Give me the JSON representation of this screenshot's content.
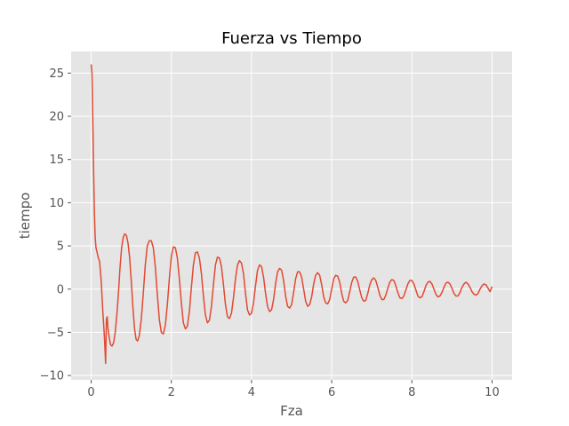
{
  "chart_data": {
    "type": "line",
    "title": "Fuerza vs Tiempo",
    "xlabel": "Fza",
    "ylabel": "tiempo",
    "xlim": [
      -0.5,
      10.5
    ],
    "ylim": [
      -10.5,
      27.5
    ],
    "xticks": [
      0,
      2,
      4,
      6,
      8,
      10
    ],
    "yticks": [
      -10,
      -5,
      0,
      5,
      10,
      15,
      20,
      25
    ],
    "grid": true,
    "style": "ggplot",
    "line_color": "#E24A33",
    "background_color": "#E5E5E5",
    "series": [
      {
        "points": [
          [
            0.0,
            26.0
          ],
          [
            0.02,
            25.0
          ],
          [
            0.04,
            20.0
          ],
          [
            0.06,
            14.0
          ],
          [
            0.08,
            9.0
          ],
          [
            0.1,
            6.0
          ],
          [
            0.12,
            4.8
          ],
          [
            0.15,
            4.2
          ],
          [
            0.18,
            3.6
          ],
          [
            0.21,
            3.2
          ],
          [
            0.25,
            1.0
          ],
          [
            0.29,
            -2.5
          ],
          [
            0.33,
            -5.5
          ],
          [
            0.36,
            -8.6
          ],
          [
            0.38,
            -3.5
          ],
          [
            0.4,
            -3.2
          ],
          [
            0.42,
            -4.6
          ],
          [
            0.45,
            -5.6
          ],
          [
            0.48,
            -6.4
          ],
          [
            0.52,
            -6.6
          ],
          [
            0.56,
            -6.2
          ],
          [
            0.6,
            -5.0
          ],
          [
            0.64,
            -3.0
          ],
          [
            0.68,
            -0.5
          ],
          [
            0.72,
            2.5
          ],
          [
            0.76,
            4.8
          ],
          [
            0.8,
            6.0
          ],
          [
            0.84,
            6.4
          ],
          [
            0.88,
            6.2
          ],
          [
            0.92,
            5.3
          ],
          [
            0.96,
            3.6
          ],
          [
            1.0,
            1.0
          ],
          [
            1.04,
            -2.0
          ],
          [
            1.08,
            -4.5
          ],
          [
            1.12,
            -5.8
          ],
          [
            1.16,
            -6.0
          ],
          [
            1.2,
            -5.4
          ],
          [
            1.25,
            -3.5
          ],
          [
            1.3,
            -0.5
          ],
          [
            1.35,
            2.8
          ],
          [
            1.4,
            5.0
          ],
          [
            1.45,
            5.6
          ],
          [
            1.5,
            5.6
          ],
          [
            1.55,
            4.8
          ],
          [
            1.6,
            2.6
          ],
          [
            1.65,
            -0.6
          ],
          [
            1.7,
            -3.5
          ],
          [
            1.75,
            -5.0
          ],
          [
            1.8,
            -5.2
          ],
          [
            1.85,
            -4.2
          ],
          [
            1.9,
            -1.8
          ],
          [
            1.95,
            1.2
          ],
          [
            2.0,
            3.8
          ],
          [
            2.05,
            4.9
          ],
          [
            2.1,
            4.8
          ],
          [
            2.15,
            3.6
          ],
          [
            2.2,
            1.2
          ],
          [
            2.25,
            -1.6
          ],
          [
            2.3,
            -3.9
          ],
          [
            2.35,
            -4.6
          ],
          [
            2.4,
            -4.3
          ],
          [
            2.45,
            -2.6
          ],
          [
            2.5,
            0.2
          ],
          [
            2.55,
            2.8
          ],
          [
            2.6,
            4.2
          ],
          [
            2.65,
            4.3
          ],
          [
            2.7,
            3.6
          ],
          [
            2.75,
            1.8
          ],
          [
            2.8,
            -0.8
          ],
          [
            2.85,
            -3.0
          ],
          [
            2.9,
            -3.9
          ],
          [
            2.95,
            -3.6
          ],
          [
            3.0,
            -2.0
          ],
          [
            3.05,
            0.5
          ],
          [
            3.1,
            2.8
          ],
          [
            3.15,
            3.7
          ],
          [
            3.2,
            3.6
          ],
          [
            3.25,
            2.6
          ],
          [
            3.3,
            0.5
          ],
          [
            3.35,
            -1.8
          ],
          [
            3.4,
            -3.2
          ],
          [
            3.45,
            -3.4
          ],
          [
            3.5,
            -2.8
          ],
          [
            3.55,
            -1.0
          ],
          [
            3.6,
            1.2
          ],
          [
            3.65,
            2.8
          ],
          [
            3.7,
            3.3
          ],
          [
            3.75,
            3.0
          ],
          [
            3.8,
            1.8
          ],
          [
            3.85,
            -0.5
          ],
          [
            3.9,
            -2.4
          ],
          [
            3.95,
            -3.0
          ],
          [
            4.0,
            -2.8
          ],
          [
            4.05,
            -1.6
          ],
          [
            4.1,
            0.4
          ],
          [
            4.15,
            2.2
          ],
          [
            4.2,
            2.8
          ],
          [
            4.25,
            2.6
          ],
          [
            4.3,
            1.4
          ],
          [
            4.35,
            -0.5
          ],
          [
            4.4,
            -2.0
          ],
          [
            4.45,
            -2.6
          ],
          [
            4.5,
            -2.4
          ],
          [
            4.55,
            -1.2
          ],
          [
            4.6,
            0.6
          ],
          [
            4.65,
            2.0
          ],
          [
            4.7,
            2.4
          ],
          [
            4.75,
            2.2
          ],
          [
            4.8,
            1.0
          ],
          [
            4.85,
            -0.8
          ],
          [
            4.9,
            -2.0
          ],
          [
            4.95,
            -2.2
          ],
          [
            5.0,
            -1.8
          ],
          [
            5.05,
            -0.4
          ],
          [
            5.1,
            1.2
          ],
          [
            5.15,
            2.0
          ],
          [
            5.2,
            2.0
          ],
          [
            5.25,
            1.4
          ],
          [
            5.3,
            0.0
          ],
          [
            5.35,
            -1.4
          ],
          [
            5.4,
            -2.0
          ],
          [
            5.45,
            -1.8
          ],
          [
            5.5,
            -0.9
          ],
          [
            5.55,
            0.6
          ],
          [
            5.6,
            1.6
          ],
          [
            5.65,
            1.9
          ],
          [
            5.7,
            1.6
          ],
          [
            5.75,
            0.5
          ],
          [
            5.8,
            -0.9
          ],
          [
            5.85,
            -1.6
          ],
          [
            5.9,
            -1.7
          ],
          [
            5.95,
            -1.2
          ],
          [
            6.0,
            0.0
          ],
          [
            6.05,
            1.2
          ],
          [
            6.1,
            1.6
          ],
          [
            6.15,
            1.5
          ],
          [
            6.2,
            0.8
          ],
          [
            6.25,
            -0.5
          ],
          [
            6.3,
            -1.4
          ],
          [
            6.35,
            -1.6
          ],
          [
            6.4,
            -1.3
          ],
          [
            6.45,
            -0.3
          ],
          [
            6.5,
            0.8
          ],
          [
            6.55,
            1.4
          ],
          [
            6.6,
            1.4
          ],
          [
            6.65,
            0.9
          ],
          [
            6.7,
            -0.1
          ],
          [
            6.75,
            -1.0
          ],
          [
            6.8,
            -1.4
          ],
          [
            6.85,
            -1.3
          ],
          [
            6.9,
            -0.5
          ],
          [
            6.95,
            0.5
          ],
          [
            7.0,
            1.1
          ],
          [
            7.05,
            1.3
          ],
          [
            7.1,
            1.0
          ],
          [
            7.15,
            0.2
          ],
          [
            7.2,
            -0.7
          ],
          [
            7.25,
            -1.2
          ],
          [
            7.3,
            -1.2
          ],
          [
            7.35,
            -0.7
          ],
          [
            7.4,
            0.1
          ],
          [
            7.45,
            0.8
          ],
          [
            7.5,
            1.1
          ],
          [
            7.55,
            1.0
          ],
          [
            7.6,
            0.4
          ],
          [
            7.65,
            -0.4
          ],
          [
            7.7,
            -1.0
          ],
          [
            7.75,
            -1.1
          ],
          [
            7.8,
            -0.8
          ],
          [
            7.85,
            -0.1
          ],
          [
            7.9,
            0.6
          ],
          [
            7.95,
            1.0
          ],
          [
            8.0,
            1.0
          ],
          [
            8.05,
            0.6
          ],
          [
            8.1,
            -0.1
          ],
          [
            8.15,
            -0.8
          ],
          [
            8.2,
            -1.0
          ],
          [
            8.25,
            -0.9
          ],
          [
            8.3,
            -0.3
          ],
          [
            8.35,
            0.4
          ],
          [
            8.4,
            0.8
          ],
          [
            8.45,
            0.9
          ],
          [
            8.5,
            0.6
          ],
          [
            8.55,
            0.0
          ],
          [
            8.6,
            -0.6
          ],
          [
            8.65,
            -0.9
          ],
          [
            8.7,
            -0.8
          ],
          [
            8.75,
            -0.4
          ],
          [
            8.8,
            0.2
          ],
          [
            8.85,
            0.7
          ],
          [
            8.9,
            0.8
          ],
          [
            8.95,
            0.6
          ],
          [
            9.0,
            0.1
          ],
          [
            9.05,
            -0.5
          ],
          [
            9.1,
            -0.8
          ],
          [
            9.15,
            -0.8
          ],
          [
            9.2,
            -0.4
          ],
          [
            9.25,
            0.2
          ],
          [
            9.3,
            0.6
          ],
          [
            9.35,
            0.8
          ],
          [
            9.4,
            0.6
          ],
          [
            9.45,
            0.2
          ],
          [
            9.5,
            -0.3
          ],
          [
            9.55,
            -0.6
          ],
          [
            9.6,
            -0.7
          ],
          [
            9.65,
            -0.5
          ],
          [
            9.7,
            0.0
          ],
          [
            9.75,
            0.4
          ],
          [
            9.8,
            0.6
          ],
          [
            9.85,
            0.5
          ],
          [
            9.9,
            0.1
          ],
          [
            9.95,
            -0.3
          ],
          [
            10.0,
            0.3
          ]
        ]
      }
    ]
  }
}
